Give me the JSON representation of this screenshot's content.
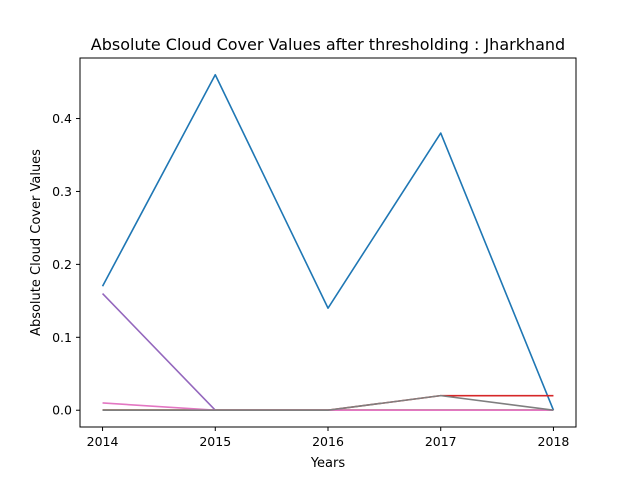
{
  "chart_data": {
    "type": "line",
    "title": "Absolute Cloud Cover Values after thresholding : Jharkhand",
    "xlabel": "Years",
    "ylabel": "Absolute Cloud Cover Values",
    "x": [
      "2014",
      "2015",
      "2016",
      "2017",
      "2018"
    ],
    "xlim": [
      2013.8,
      2018.2
    ],
    "ylim": [
      -0.023,
      0.483
    ],
    "yticks": [
      "0.0",
      "0.1",
      "0.2",
      "0.3",
      "0.4"
    ],
    "grid": false,
    "series": [
      {
        "color": "#1f77b4",
        "values": [
          0.17,
          0.46,
          0.14,
          0.38,
          0.0
        ]
      },
      {
        "color": "#ff7f0e",
        "values": [
          0.0,
          0.0,
          0.0,
          0.0,
          0.0
        ]
      },
      {
        "color": "#2ca02c",
        "values": [
          0.0,
          0.0,
          0.0,
          0.0,
          0.0
        ]
      },
      {
        "color": "#d62728",
        "values": [
          0.0,
          0.0,
          0.0,
          0.02,
          0.02
        ]
      },
      {
        "color": "#9467bd",
        "values": [
          0.16,
          0.0,
          0.0,
          0.0,
          0.0
        ]
      },
      {
        "color": "#8c564b",
        "values": [
          0.0,
          0.0,
          0.0,
          0.0,
          0.0
        ]
      },
      {
        "color": "#e377c2",
        "values": [
          0.01,
          0.0,
          0.0,
          0.0,
          0.0
        ]
      },
      {
        "color": "#7f7f7f",
        "values": [
          0.0,
          0.0,
          0.0,
          0.02,
          0.0
        ]
      }
    ]
  }
}
